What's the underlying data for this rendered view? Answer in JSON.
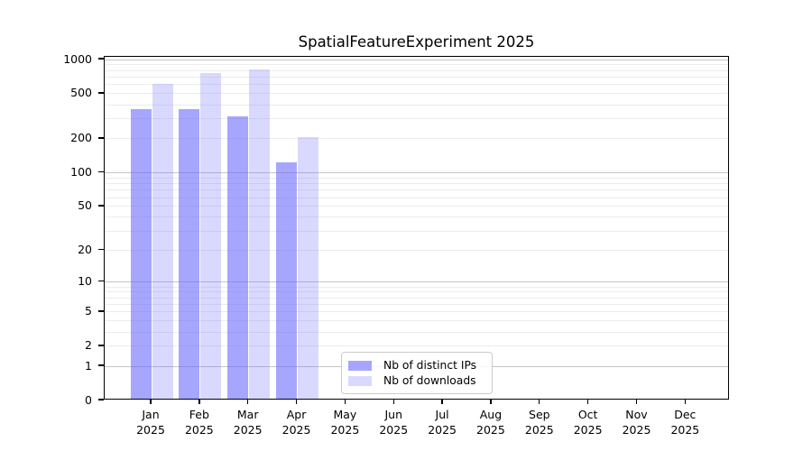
{
  "title": "SpatialFeatureExperiment 2025",
  "chart_data": {
    "type": "bar",
    "title": "SpatialFeatureExperiment 2025",
    "x_tick_year": "2025",
    "months": [
      "Jan",
      "Feb",
      "Mar",
      "Apr",
      "May",
      "Jun",
      "Jul",
      "Aug",
      "Sep",
      "Oct",
      "Nov",
      "Dec"
    ],
    "categories": [
      "Jan 2025",
      "Feb 2025",
      "Mar 2025",
      "Apr 2025",
      "May 2025",
      "Jun 2025",
      "Jul 2025",
      "Aug 2025",
      "Sep 2025",
      "Oct 2025",
      "Nov 2025",
      "Dec 2025"
    ],
    "series": [
      {
        "name": "Nb of distinct IPs",
        "color": "rgba(102,102,255,0.58)",
        "values": [
          355,
          350,
          305,
          120,
          0,
          0,
          0,
          0,
          0,
          0,
          0,
          0
        ]
      },
      {
        "name": "Nb of downloads",
        "color": "rgba(102,102,255,0.25)",
        "values": [
          585,
          735,
          795,
          200,
          0,
          0,
          0,
          0,
          0,
          0,
          0,
          0
        ]
      }
    ],
    "yscale": "log1p",
    "ylim": [
      0,
      1050
    ],
    "yticks": [
      0,
      1,
      2,
      5,
      10,
      20,
      50,
      100,
      200,
      500,
      1000
    ],
    "grid": {
      "orientation": "horizontal",
      "major_lines": [
        1,
        10,
        100,
        1000
      ],
      "major_color": "#c6c6c6",
      "minor_color": "#ececec"
    },
    "legend": {
      "position": "inside-bottom-center",
      "labels": [
        "Nb of distinct IPs",
        "Nb of downloads"
      ]
    },
    "xlabel": "",
    "ylabel": ""
  },
  "colors": {
    "axis": "#000000",
    "background": "#ffffff",
    "distinct_ips_bar": "rgba(102,102,255,0.58)",
    "downloads_bar": "rgba(102,102,255,0.25)"
  }
}
